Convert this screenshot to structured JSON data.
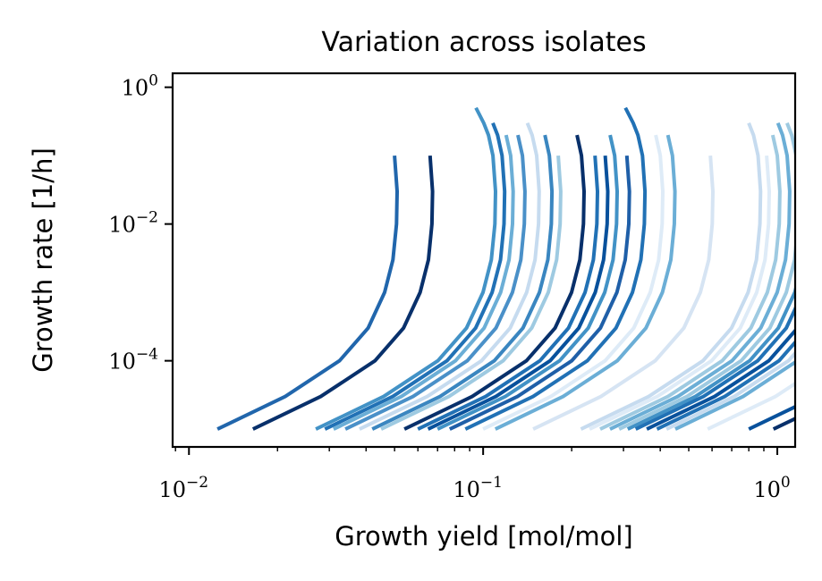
{
  "chart_data": {
    "type": "line",
    "title": "Variation across isolates",
    "xlabel": "Growth yield [mol/mol]",
    "ylabel": "Growth rate [1/h]",
    "xscale": "log",
    "yscale": "log",
    "xlim": [
      0.0088,
      1.15
    ],
    "ylim": [
      5.5e-06,
      1.6
    ],
    "x_ticks": [
      {
        "value": 0.01,
        "base": "10",
        "exp": "−2"
      },
      {
        "value": 0.1,
        "base": "10",
        "exp": "−1"
      },
      {
        "value": 1,
        "base": "10",
        "exp": "0"
      }
    ],
    "y_ticks": [
      {
        "value": 1,
        "base": "10",
        "exp": "0"
      },
      {
        "value": 0.01,
        "base": "10",
        "exp": "−2"
      },
      {
        "value": 0.0001,
        "base": "10",
        "exp": "−4"
      }
    ],
    "grid": false,
    "legend": "none",
    "curve_shape": {
      "y_levels": [
        1e-05,
        3e-05,
        0.0001,
        0.0003,
        0.001,
        0.003,
        0.01,
        0.03,
        0.1,
        0.2,
        0.3,
        0.5,
        0.8,
        1.0
      ],
      "x_fractions": [
        1.0,
        1.7,
        2.6,
        3.25,
        3.7,
        3.95,
        4.06,
        4.08,
        4.0,
        3.86,
        3.72,
        3.5,
        3.25,
        3.1
      ]
    },
    "series": [
      {
        "x_start": 0.0125,
        "y_top": 0.12,
        "color": "#2166ac"
      },
      {
        "x_start": 0.0165,
        "y_top": 0.13,
        "color": "#08306b"
      },
      {
        "x_start": 0.027,
        "y_top": 0.5,
        "color": "#4292c6"
      },
      {
        "x_start": 0.029,
        "y_top": 0.4,
        "color": "#2171b5"
      },
      {
        "x_start": 0.031,
        "y_top": 0.2,
        "color": "#6baed6"
      },
      {
        "x_start": 0.034,
        "y_top": 0.2,
        "color": "#4a90c8"
      },
      {
        "x_start": 0.038,
        "y_top": 0.35,
        "color": "#c6dbef"
      },
      {
        "x_start": 0.042,
        "y_top": 0.2,
        "color": "#3a86c0"
      },
      {
        "x_start": 0.045,
        "y_top": 0.18,
        "color": "#9ecae1"
      },
      {
        "x_start": 0.054,
        "y_top": 0.2,
        "color": "#08306b"
      },
      {
        "x_start": 0.06,
        "y_top": 0.15,
        "color": "#2171b5"
      },
      {
        "x_start": 0.065,
        "y_top": 0.18,
        "color": "#08519c"
      },
      {
        "x_start": 0.07,
        "y_top": 0.2,
        "color": "#4292c6"
      },
      {
        "x_start": 0.077,
        "y_top": 0.18,
        "color": "#1f5fa8"
      },
      {
        "x_start": 0.087,
        "y_top": 0.6,
        "color": "#2171b5"
      },
      {
        "x_start": 0.1,
        "y_top": 0.2,
        "color": "#deebf7"
      },
      {
        "x_start": 0.11,
        "y_top": 0.2,
        "color": "#6baed6"
      },
      {
        "x_start": 0.148,
        "y_top": 0.15,
        "color": "#d6e4f3"
      },
      {
        "x_start": 0.215,
        "y_top": 0.4,
        "color": "#c6dbef"
      },
      {
        "x_start": 0.23,
        "y_top": 0.15,
        "color": "#deebf7"
      },
      {
        "x_start": 0.25,
        "y_top": 0.2,
        "color": "#9ecae1"
      },
      {
        "x_start": 0.27,
        "y_top": 0.3,
        "color": "#6baed6"
      },
      {
        "x_start": 0.29,
        "y_top": 0.35,
        "color": "#9ecae1"
      },
      {
        "x_start": 0.31,
        "y_top": 0.2,
        "color": "#4292c6"
      },
      {
        "x_start": 0.33,
        "y_top": 0.3,
        "color": "#2171b5"
      },
      {
        "x_start": 0.36,
        "y_top": 0.25,
        "color": "#08519c"
      },
      {
        "x_start": 0.39,
        "y_top": 0.2,
        "color": "#2171b5"
      },
      {
        "x_start": 0.42,
        "y_top": 0.3,
        "color": "#c6dbef"
      },
      {
        "x_start": 0.45,
        "y_top": 0.35,
        "color": "#6baed6"
      },
      {
        "x_start": 0.58,
        "y_top": 0.18,
        "color": "#deebf7"
      },
      {
        "x_start": 0.8,
        "y_top": 0.12,
        "color": "#08519c"
      },
      {
        "x_start": 0.97,
        "y_top": 1.0,
        "color": "#08306b"
      }
    ]
  }
}
